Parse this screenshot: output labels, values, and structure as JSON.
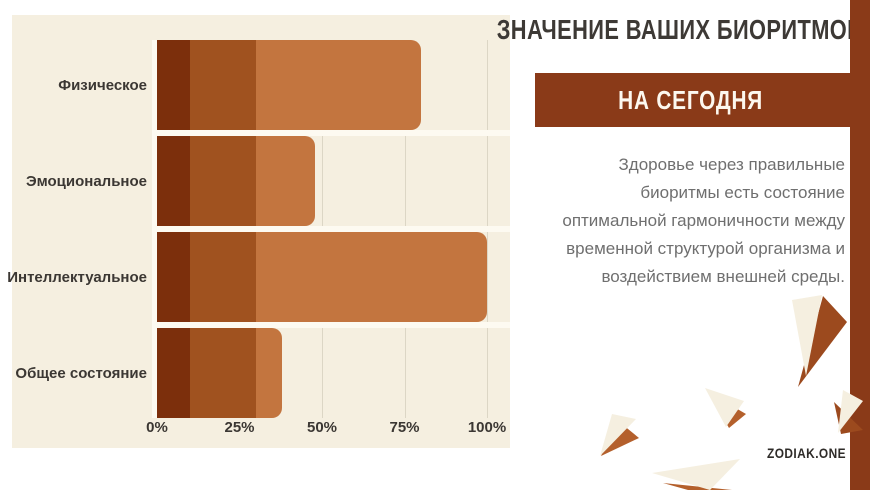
{
  "colors": {
    "panel_bg": "#f5efe0",
    "separator": "#fdfaf1",
    "gridline": "#dcd6c5",
    "bar_dark": "#7c2f0c",
    "bar_mid": "#a0521f",
    "bar_light": "#c3753f",
    "accent_brown": "#8a3a18",
    "shard_cream": "#f5efe0",
    "shard_dark": "#9c4a1e",
    "shard_mid": "#b4602c",
    "title_text": "#3d3935",
    "banner_text": "#fdf8ef",
    "label_text": "#3b3733",
    "paragraph_text": "#6f6f6f",
    "logo_text": "#2e2b28"
  },
  "chart_data": {
    "type": "bar",
    "orientation": "horizontal",
    "categories": [
      "Физическое",
      "Эмоциональное",
      "Интеллектуальное",
      "Общее состояние"
    ],
    "values": [
      80,
      48,
      100,
      38
    ],
    "segment_breaks": [
      10,
      30
    ],
    "x_ticks": [
      "0%",
      "25%",
      "50%",
      "75%",
      "100%"
    ],
    "x_tick_values": [
      0,
      25,
      50,
      75,
      100
    ],
    "xlim": [
      0,
      100
    ],
    "grid": true,
    "legend": false,
    "title": ""
  },
  "right_panel": {
    "title": "ЗНАЧЕНИЕ ВАШИХ БИОРИТМОВ",
    "banner_label": "НА СЕГОДНЯ",
    "paragraph_lines": [
      "Здоровье через правильные",
      "биоритмы есть состояние",
      "оптимальной гармоничности между",
      "временной структурой организма и",
      "воздействием внешней среды."
    ],
    "logo": "ZODIAK.ONE"
  }
}
